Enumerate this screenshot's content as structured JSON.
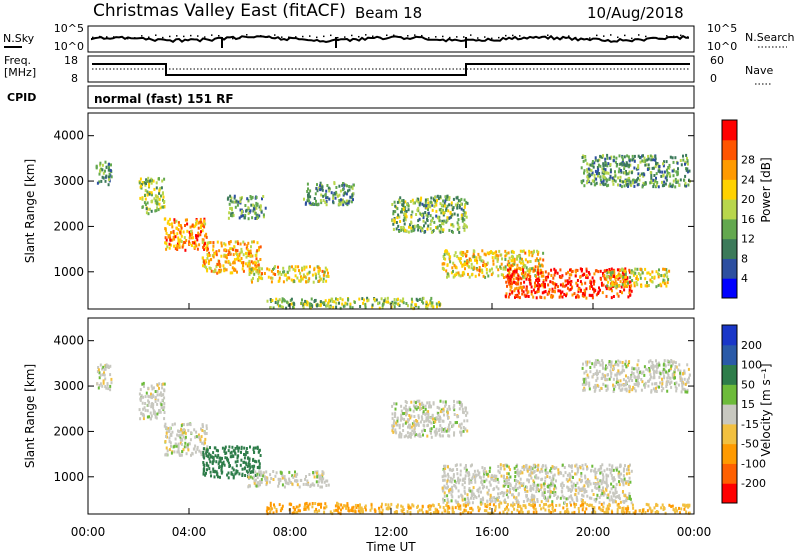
{
  "header": {
    "title": "Christmas Valley East (fitACF)",
    "beam": "Beam 18",
    "date": "10/Aug/2018"
  },
  "info_panels": {
    "nsky_label": "N.Sky",
    "nsearch_label": "N.Search",
    "noise_ticks_left": [
      "10^5",
      "10^0"
    ],
    "noise_ticks_right": [
      "10^5",
      "10^0"
    ],
    "freq_label_line1": "Freq.",
    "freq_label_line2": "[MHz]",
    "freq_ticks": [
      "18",
      "8"
    ],
    "nave_label": "Nave",
    "nave_ticks": [
      "60",
      "0"
    ],
    "cpid_label": "CPID",
    "cpid_value": "normal (fast) 151 RF"
  },
  "colors": {
    "power": [
      "#0000ff",
      "#2d4fa0",
      "#3c7a5a",
      "#63a84f",
      "#b8d64c",
      "#ffd200",
      "#ff9a00",
      "#ff5500",
      "#ff0000"
    ],
    "velocity": [
      "#1a37c8",
      "#2a5aa8",
      "#2e7d4a",
      "#6dbb3a",
      "#c8c8c0",
      "#f2c040",
      "#ff9a00",
      "#ff6000",
      "#ff0000"
    ],
    "ground_scatter": "#c8c8c0"
  },
  "chart_data": [
    {
      "type": "heatmap",
      "name": "power",
      "xlabel": "",
      "ylabel": "Slant Range [km]",
      "xlim": [
        0,
        24
      ],
      "ylim": [
        180,
        4500
      ],
      "yticks": [
        "1000",
        "2000",
        "3000",
        "4000"
      ],
      "colorbar": {
        "label": "Power [dB]",
        "ticks": [
          "4",
          "8",
          "12",
          "16",
          "20",
          "24",
          "28"
        ],
        "range": [
          0,
          30
        ]
      },
      "patches": [
        {
          "t": [
            0.3,
            0.9
          ],
          "r": [
            2950,
            3500
          ],
          "v": 10
        },
        {
          "t": [
            2.0,
            3.0
          ],
          "r": [
            2300,
            3100
          ],
          "v": 14
        },
        {
          "t": [
            3.0,
            4.7
          ],
          "r": [
            1500,
            2200
          ],
          "v": 22
        },
        {
          "t": [
            4.5,
            6.8
          ],
          "r": [
            1000,
            1700
          ],
          "v": 20
        },
        {
          "t": [
            6.3,
            9.5
          ],
          "r": [
            800,
            1150
          ],
          "v": 18
        },
        {
          "t": [
            5.5,
            7.0
          ],
          "r": [
            2200,
            2700
          ],
          "v": 10
        },
        {
          "t": [
            8.5,
            10.5
          ],
          "r": [
            2500,
            3000
          ],
          "v": 10
        },
        {
          "t": [
            12.0,
            15.0
          ],
          "r": [
            1900,
            2700
          ],
          "v": 12
        },
        {
          "t": [
            14.0,
            18.0
          ],
          "r": [
            900,
            1500
          ],
          "v": 18
        },
        {
          "t": [
            16.5,
            21.5
          ],
          "r": [
            450,
            1100
          ],
          "v": 26
        },
        {
          "t": [
            20.5,
            23.0
          ],
          "r": [
            700,
            1100
          ],
          "v": 16
        },
        {
          "t": [
            7.0,
            14.0
          ],
          "r": [
            220,
            450
          ],
          "v": 14
        },
        {
          "t": [
            19.5,
            23.8
          ],
          "r": [
            2900,
            3600
          ],
          "v": 10
        }
      ]
    },
    {
      "type": "heatmap",
      "name": "velocity",
      "xlabel": "Time UT",
      "ylabel": "Slant Range [km]",
      "xlim": [
        0,
        24
      ],
      "ylim": [
        180,
        4500
      ],
      "xticks": [
        "00:00",
        "04:00",
        "08:00",
        "12:00",
        "16:00",
        "20:00",
        "00:00"
      ],
      "yticks": [
        "1000",
        "2000",
        "3000",
        "4000"
      ],
      "colorbar": {
        "label": "Velocity [m s⁻¹]",
        "ticks": [
          "200",
          "100",
          "50",
          "15",
          "-15",
          "-50",
          "-100",
          "-200"
        ],
        "range": [
          -250,
          250
        ]
      },
      "patches": [
        {
          "t": [
            0.3,
            0.9
          ],
          "r": [
            2950,
            3500
          ],
          "v": 0
        },
        {
          "t": [
            2.0,
            3.0
          ],
          "r": [
            2300,
            3100
          ],
          "v": 0
        },
        {
          "t": [
            3.0,
            4.7
          ],
          "r": [
            1500,
            2200
          ],
          "v": 0
        },
        {
          "t": [
            4.5,
            6.8
          ],
          "r": [
            1000,
            1700
          ],
          "v": 80
        },
        {
          "t": [
            6.3,
            9.5
          ],
          "r": [
            800,
            1150
          ],
          "v": 0
        },
        {
          "t": [
            12.0,
            15.0
          ],
          "r": [
            1900,
            2700
          ],
          "v": 0
        },
        {
          "t": [
            14.0,
            21.5
          ],
          "r": [
            450,
            1300
          ],
          "v": 0
        },
        {
          "t": [
            7.0,
            10.5
          ],
          "r": [
            220,
            450
          ],
          "v": -60
        },
        {
          "t": [
            10.5,
            23.8
          ],
          "r": [
            220,
            430
          ],
          "v": -40
        },
        {
          "t": [
            19.5,
            23.8
          ],
          "r": [
            2900,
            3600
          ],
          "v": 0
        }
      ]
    }
  ]
}
